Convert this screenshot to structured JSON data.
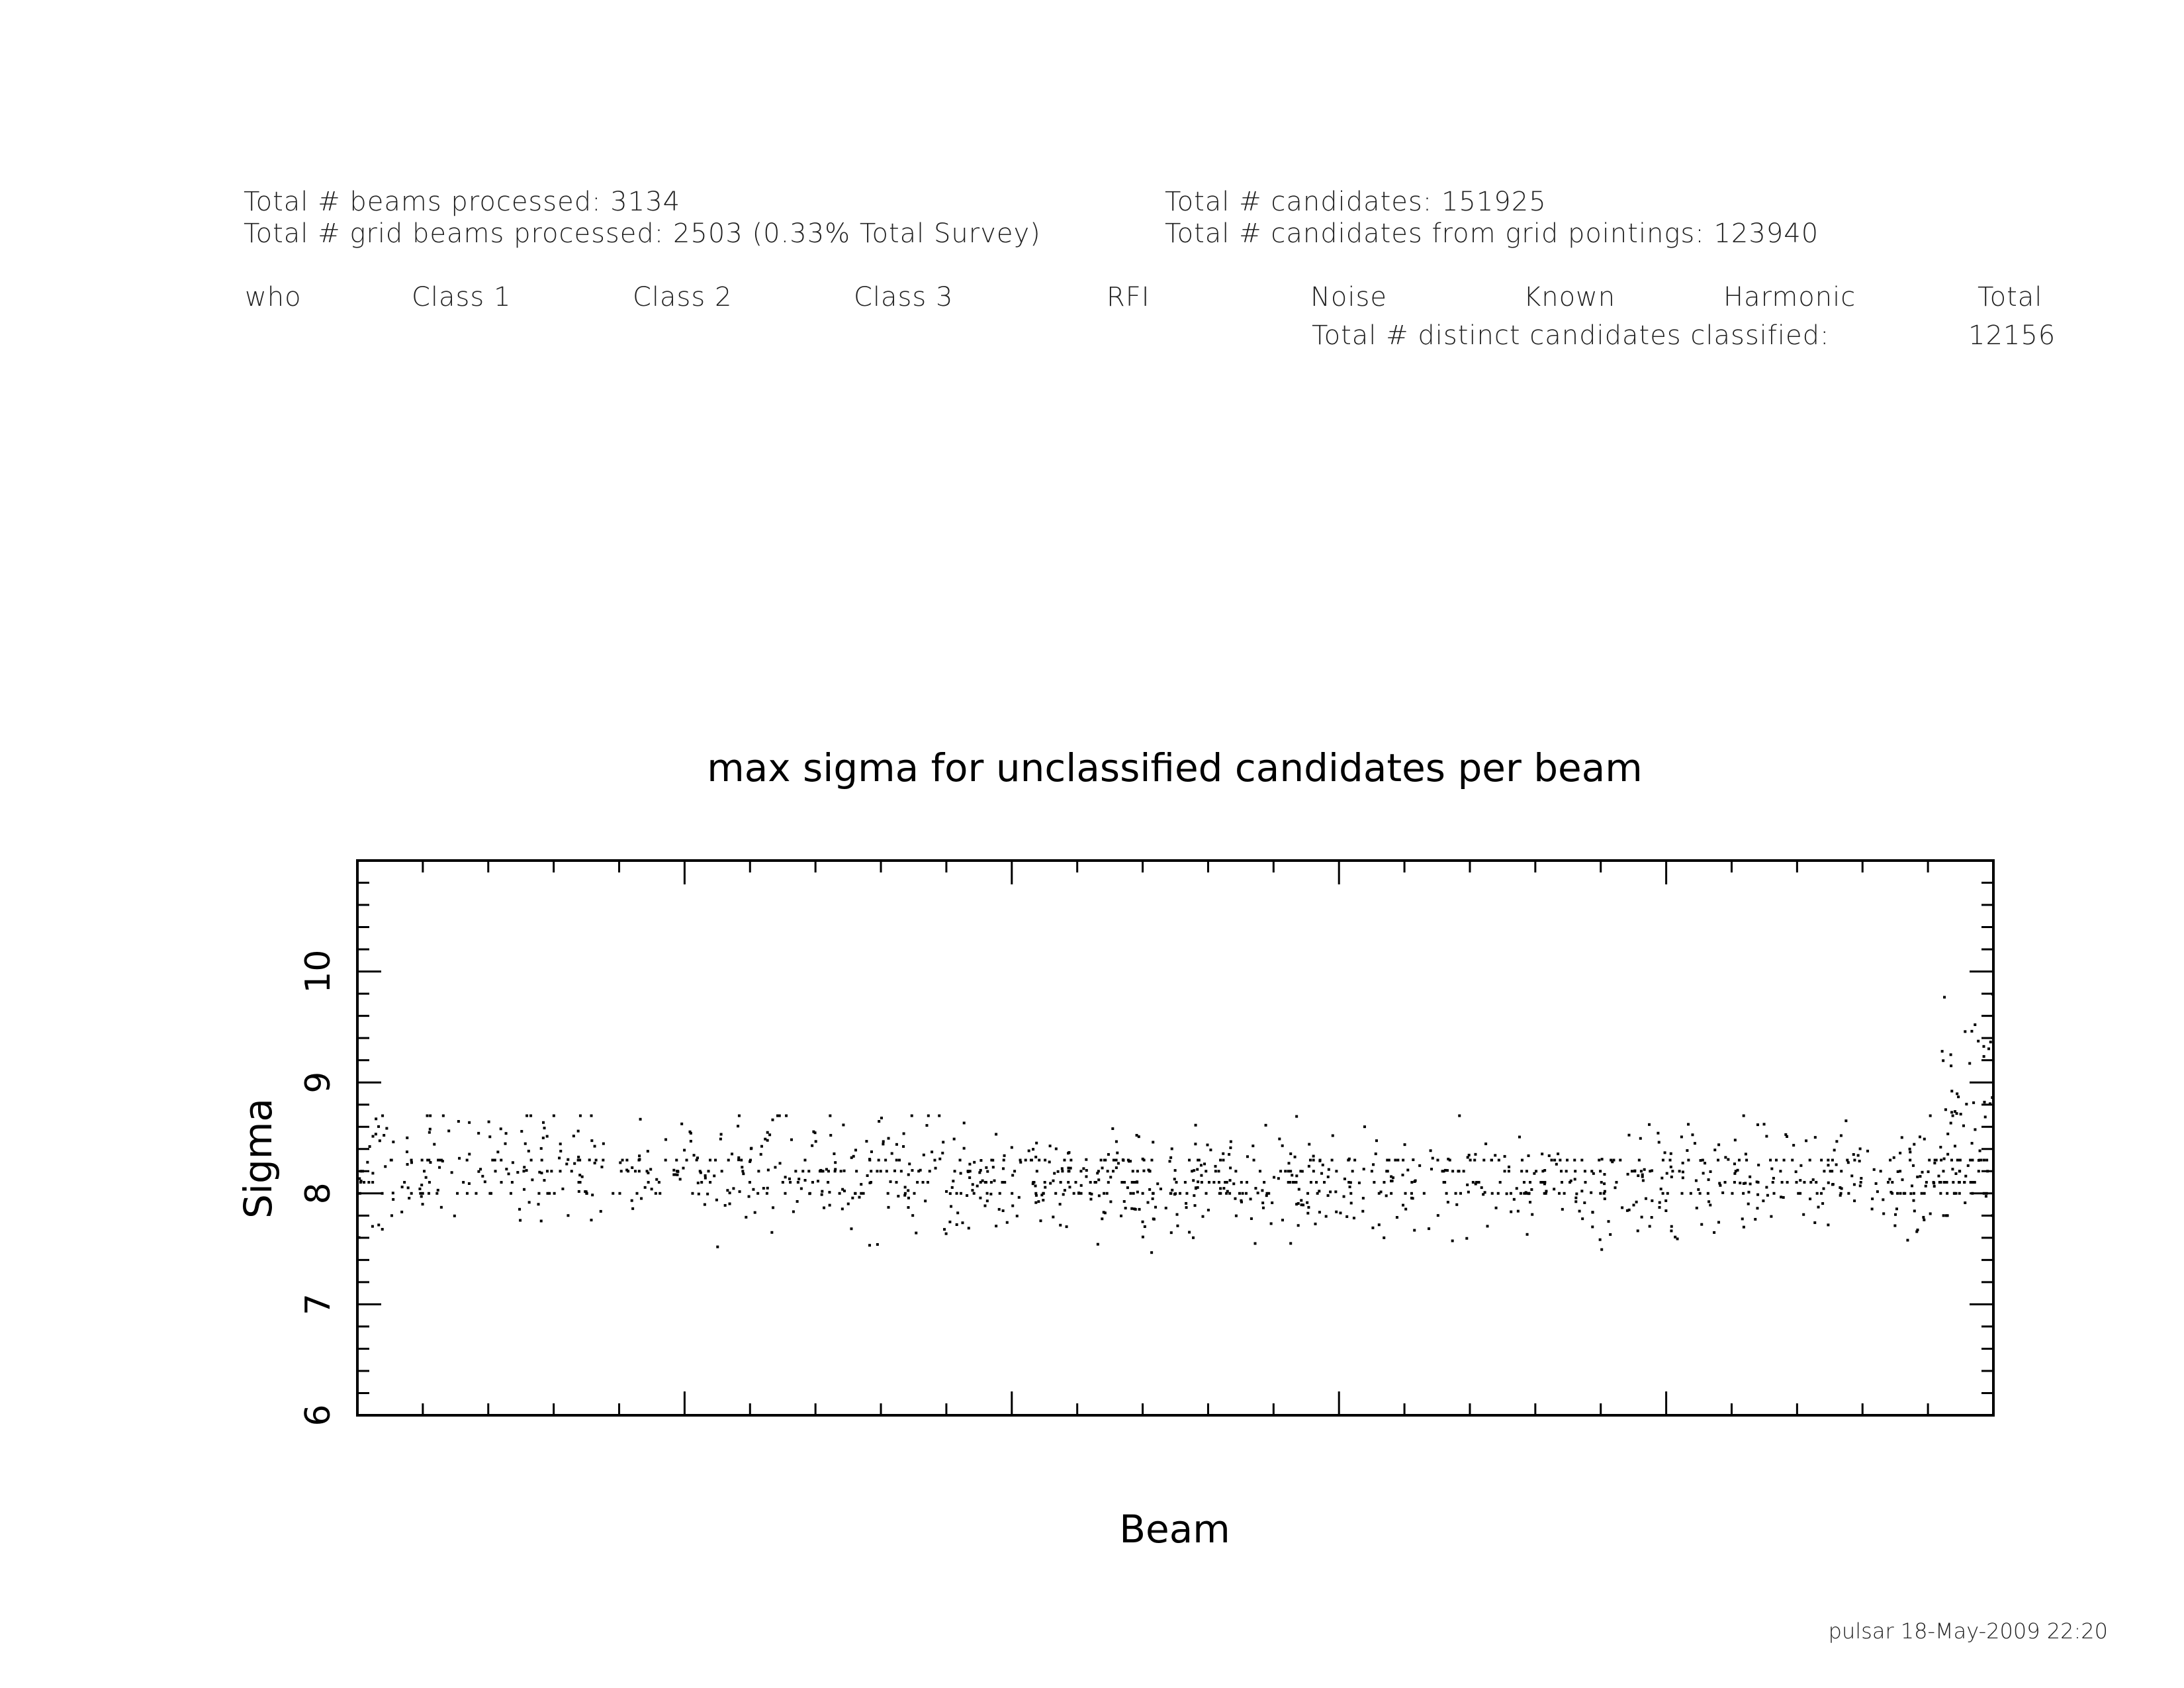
{
  "summary": {
    "beams_processed": "Total # beams processed: 3134",
    "grid_beams_processed": "Total # grid beams processed: 2503 (0.33% Total Survey)",
    "candidates": "Total # candidates: 151925",
    "candidates_grid": "Total # candidates from grid pointings: 123940"
  },
  "class_table": {
    "headers": [
      "who",
      "Class 1",
      "Class 2",
      "Class 3",
      "RFI",
      "Noise",
      "Known",
      "Harmonic",
      "Total"
    ],
    "distinct_label": "Total # distinct candidates classified:",
    "distinct_value": "12156"
  },
  "footer": "pulsar 18-May-2009 22:20",
  "chart_data": {
    "type": "scatter",
    "title": "max sigma for unclassified candidates per beam",
    "xlabel": "Beam",
    "ylabel": "Sigma",
    "ylim": [
      6,
      11
    ],
    "xlim": [
      0,
      2503
    ],
    "y_ticks": [
      "6",
      "7",
      "8",
      "9",
      "10"
    ],
    "x_tick_labels": [],
    "point_color": "#000000",
    "grid": false,
    "segments": [
      {
        "x_start": 0,
        "x_end": 900,
        "y_mean": 8.25,
        "y_spread": 0.28,
        "y_min": 7.4,
        "y_max": 8.7,
        "points": 420
      },
      {
        "x_start": 900,
        "x_end": 1300,
        "y_mean": 8.05,
        "y_spread": 0.25,
        "y_min": 7.15,
        "y_max": 8.7,
        "points": 260
      },
      {
        "x_start": 1300,
        "x_end": 2000,
        "y_mean": 8.05,
        "y_spread": 0.25,
        "y_min": 7.3,
        "y_max": 8.7,
        "points": 360
      },
      {
        "x_start": 2000,
        "x_end": 2420,
        "y_mean": 8.15,
        "y_spread": 0.28,
        "y_min": 7.35,
        "y_max": 8.7,
        "points": 220
      },
      {
        "x_start": 2420,
        "x_end": 2503,
        "y_mean": 8.8,
        "y_spread": 0.6,
        "y_min": 7.8,
        "y_max": 10.0,
        "points": 90
      }
    ],
    "quantized_levels": [
      8.0,
      8.1,
      8.2,
      8.3
    ]
  }
}
